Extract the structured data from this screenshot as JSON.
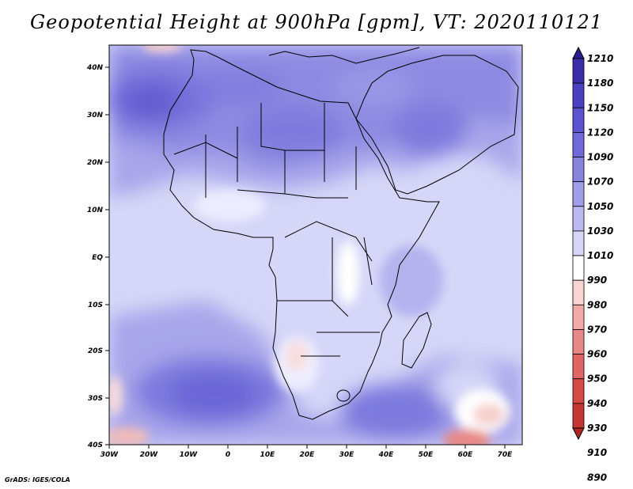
{
  "title": "Geopotential Height at 900hPa [gpm], VT: 2020110121",
  "credit": "GrADS: IGES/COLA",
  "lat_labels": [
    "40N",
    "30N",
    "20N",
    "10N",
    "EQ",
    "10S",
    "20S",
    "30S",
    "40S"
  ],
  "lon_labels": [
    "30W",
    "20W",
    "10W",
    "0",
    "10E",
    "20E",
    "30E",
    "40E",
    "50E",
    "60E",
    "70E"
  ],
  "colorbar": {
    "levels": [
      "1210",
      "1180",
      "1150",
      "1120",
      "1090",
      "1070",
      "1050",
      "1030",
      "1010",
      "990",
      "980",
      "970",
      "960",
      "950",
      "940",
      "930",
      "910",
      "890"
    ],
    "colors": [
      "#2b1f8f",
      "#3a2fa8",
      "#4a40c0",
      "#5a52d0",
      "#6f6ad8",
      "#8784e0",
      "#a09ee8",
      "#bab9f0",
      "#d6d6f8",
      "#ffffff",
      "#f8d4d2",
      "#f2aaa8",
      "#e88886",
      "#de6664",
      "#d44846",
      "#c43634",
      "#b02624"
    ]
  },
  "colors": {
    "ocean_base": "#d6d6f8",
    "boundary": "#000000",
    "frame": "#000000"
  }
}
